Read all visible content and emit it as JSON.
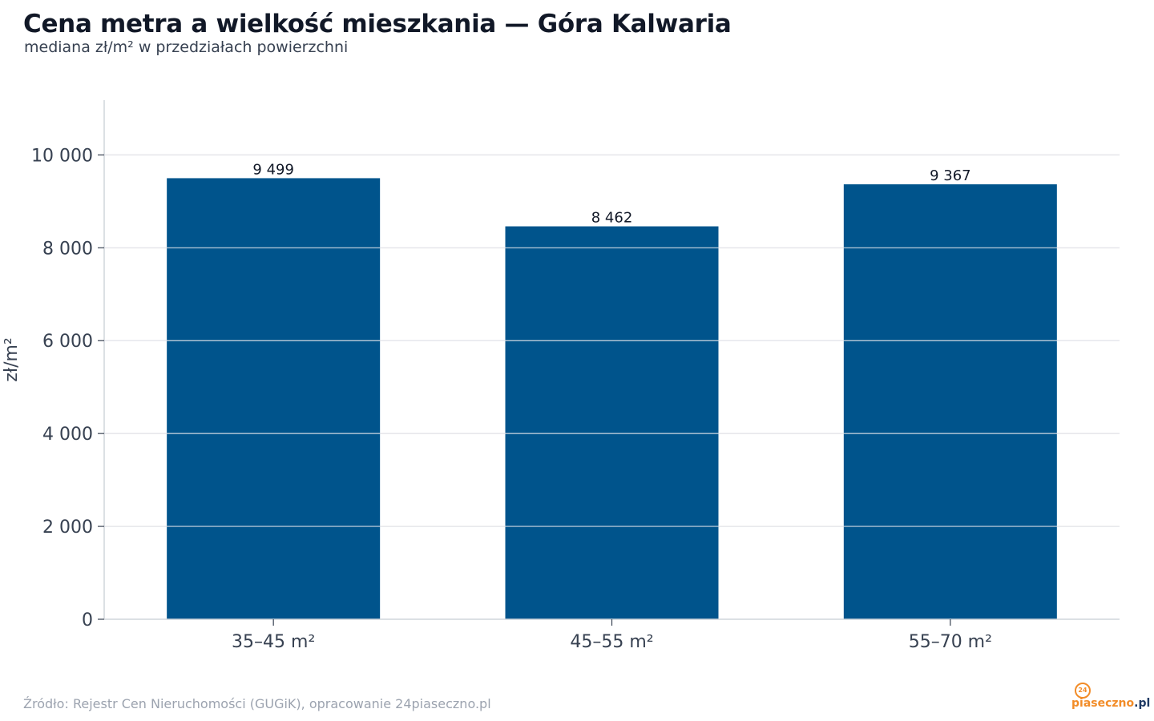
{
  "title": "Cena metra a wielkość mieszkania — Góra Kalwaria",
  "subtitle": "mediana zł/m² w przedziałach powierzchni",
  "source": "Źródło: Rejestr Cen Nieruchomości (GUGiK), opracowanie 24piaseczno.pl",
  "logo": {
    "badge": "24",
    "name": "piaseczno",
    "tld": ".pl"
  },
  "colors": {
    "bar": "#00548c",
    "grid": "#e5e7eb",
    "axis": "#d1d5db",
    "tick_text": "#374151",
    "label_text": "#111827"
  },
  "chart_data": {
    "type": "bar",
    "title": "Cena metra a wielkość mieszkania — Góra Kalwaria",
    "subtitle": "mediana zł/m² w przedziałach powierzchni",
    "xlabel": "",
    "ylabel": "zł/m²",
    "categories": [
      "35–45 m²",
      "45–55 m²",
      "55–70 m²"
    ],
    "values": [
      9499,
      8462,
      9367
    ],
    "value_labels": [
      "9 499",
      "8 462",
      "9 367"
    ],
    "ylim": [
      0,
      11180
    ],
    "yticks": [
      0,
      2000,
      4000,
      6000,
      8000,
      10000
    ],
    "ytick_labels": [
      "0",
      "2 000",
      "4 000",
      "6 000",
      "8 000",
      "10 000"
    ],
    "grid": true,
    "legend": "none"
  }
}
